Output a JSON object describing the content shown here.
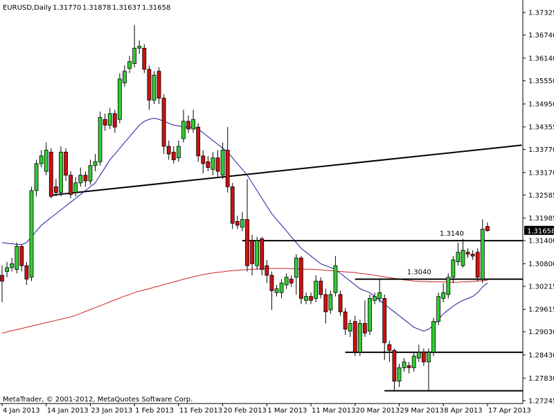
{
  "chart_data": {
    "type": "candlestick",
    "title": "EURUSD,Daily",
    "header_values": [
      "1.31770",
      "1.31878",
      "1.31637",
      "1.31658"
    ],
    "footer": "MetaTrader, © 2001-2012, MetaQuotes Software Corp.",
    "up_color": "#33cc33",
    "down_color": "#cc1111",
    "categories": [
      "4 Jan 2013",
      null,
      null,
      null,
      null,
      null,
      null,
      null,
      null,
      "14 Jan 2013",
      null,
      null,
      null,
      null,
      null,
      null,
      null,
      null,
      "23 Jan 2013",
      null,
      null,
      null,
      null,
      null,
      null,
      null,
      null,
      "1 Feb 2013",
      null,
      null,
      null,
      null,
      null,
      null,
      null,
      null,
      "11 Feb 2013",
      null,
      null,
      null,
      null,
      null,
      null,
      null,
      null,
      "20 Feb 2013",
      null,
      null,
      null,
      null,
      null,
      null,
      null,
      null,
      "1 Mar 2013",
      null,
      null,
      null,
      null,
      null,
      null,
      null,
      null,
      "11 Mar 2013",
      null,
      null,
      null,
      null,
      null,
      null,
      null,
      null,
      "20 Mar 2013",
      null,
      null,
      null,
      null,
      null,
      null,
      null,
      null,
      "29 Mar 2013",
      null,
      null,
      null,
      null,
      null,
      null,
      null,
      null,
      "8 Apr 2013",
      null,
      null,
      null,
      null,
      null,
      null,
      null,
      null,
      "17 Apr 2013"
    ],
    "open": [
      1.305,
      1.306,
      1.307,
      1.3065,
      1.3125,
      1.3075,
      1.3045,
      1.327,
      1.334,
      1.332,
      1.337,
      1.328,
      1.3265,
      1.337,
      1.331,
      1.3265,
      1.329,
      1.331,
      1.3295,
      1.3335,
      1.3345,
      1.3455,
      1.344,
      1.347,
      1.3455,
      1.355,
      1.3587,
      1.36,
      1.364,
      1.364,
      1.3585,
      1.3505,
      1.358,
      1.351,
      1.3385,
      1.337,
      1.3355,
      1.3405,
      1.345,
      1.343,
      1.3435,
      1.336,
      1.3345,
      1.3325,
      1.3355,
      1.331,
      1.3375,
      1.328,
      1.319,
      1.3175,
      1.3195,
      1.314,
      1.3075,
      1.3145,
      1.3075,
      1.305,
      1.3005,
      1.3005,
      1.3025,
      1.304,
      1.3045,
      1.3095,
      1.2985,
      1.2995,
      1.299,
      1.3035,
      1.3,
      1.296,
      1.3005,
      1.3,
      1.2955,
      1.2905,
      1.293,
      1.285,
      1.2925,
      1.2905,
      1.2985,
      1.299,
      1.299,
      1.287,
      1.2855,
      1.2775,
      1.281,
      1.2815,
      1.281,
      1.2835,
      1.285,
      1.2825,
      1.285,
      1.293,
      1.299,
      1.3,
      1.3045,
      1.3085,
      1.3075,
      1.311,
      1.3105,
      1.311,
      1.304,
      1.3177
    ],
    "high": [
      1.3075,
      1.3085,
      1.3095,
      1.3135,
      1.313,
      1.3085,
      1.328,
      1.335,
      1.3375,
      1.3395,
      1.338,
      1.33,
      1.3385,
      1.338,
      1.332,
      1.3305,
      1.333,
      1.332,
      1.335,
      1.3365,
      1.3475,
      1.347,
      1.3485,
      1.348,
      1.3575,
      1.3595,
      1.362,
      1.37,
      1.366,
      1.365,
      1.3595,
      1.358,
      1.359,
      1.352,
      1.34,
      1.3385,
      1.34,
      1.348,
      1.3465,
      1.348,
      1.3445,
      1.3375,
      1.336,
      1.337,
      1.3375,
      1.3395,
      1.3435,
      1.329,
      1.3205,
      1.3215,
      1.33,
      1.3155,
      1.315,
      1.315,
      1.309,
      1.306,
      1.3025,
      1.304,
      1.3055,
      1.305,
      1.3105,
      1.31,
      1.3005,
      1.3005,
      1.305,
      1.3045,
      1.3015,
      1.301,
      1.31,
      1.301,
      1.2965,
      1.2935,
      1.2945,
      1.2935,
      1.2985,
      1.3,
      1.3005,
      1.304,
      1.3,
      1.288,
      1.286,
      1.282,
      1.2835,
      1.2825,
      1.285,
      1.287,
      1.286,
      1.286,
      1.294,
      1.3005,
      1.303,
      1.3055,
      1.31,
      1.3135,
      1.3145,
      1.312,
      1.3115,
      1.312,
      1.3195,
      1.31878
    ],
    "low": [
      1.298,
      1.3045,
      1.306,
      1.3055,
      1.306,
      1.3025,
      1.3035,
      1.3255,
      1.333,
      1.331,
      1.325,
      1.3255,
      1.3255,
      1.3295,
      1.325,
      1.3255,
      1.328,
      1.328,
      1.3285,
      1.332,
      1.3335,
      1.3425,
      1.343,
      1.342,
      1.3445,
      1.354,
      1.3575,
      1.359,
      1.3625,
      1.3575,
      1.348,
      1.3495,
      1.3495,
      1.3365,
      1.335,
      1.334,
      1.3345,
      1.3395,
      1.342,
      1.342,
      1.3345,
      1.3315,
      1.332,
      1.331,
      1.3305,
      1.33,
      1.3265,
      1.317,
      1.317,
      1.3165,
      1.306,
      1.305,
      1.3065,
      1.305,
      1.303,
      1.296,
      1.2995,
      1.299,
      1.3015,
      1.302,
      1.3,
      1.2975,
      1.2975,
      1.2975,
      1.298,
      1.299,
      1.2925,
      1.295,
      1.2995,
      1.2945,
      1.2895,
      1.289,
      1.284,
      1.284,
      1.289,
      1.2895,
      1.2975,
      1.298,
      1.283,
      1.2825,
      1.275,
      1.276,
      1.28,
      1.2795,
      1.28,
      1.2825,
      1.2815,
      1.275,
      1.284,
      1.292,
      1.298,
      1.299,
      1.303,
      1.3075,
      1.307,
      1.3095,
      1.309,
      1.3035,
      1.303,
      1.31637
    ],
    "close": [
      1.3035,
      1.307,
      1.308,
      1.3125,
      1.3075,
      1.304,
      1.327,
      1.334,
      1.336,
      1.3375,
      1.3255,
      1.3265,
      1.337,
      1.331,
      1.326,
      1.329,
      1.331,
      1.3295,
      1.3335,
      1.3345,
      1.346,
      1.344,
      1.347,
      1.3435,
      1.356,
      1.358,
      1.3605,
      1.364,
      1.3645,
      1.3585,
      1.3505,
      1.357,
      1.351,
      1.3385,
      1.3365,
      1.335,
      1.3385,
      1.345,
      1.343,
      1.3455,
      1.336,
      1.334,
      1.333,
      1.3355,
      1.332,
      1.3375,
      1.328,
      1.3185,
      1.318,
      1.3195,
      1.3075,
      1.308,
      1.314,
      1.3065,
      1.305,
      1.301,
      1.3015,
      1.303,
      1.3045,
      1.303,
      1.3095,
      1.299,
      1.2995,
      1.2985,
      1.3035,
      1.3,
      1.2955,
      1.3,
      1.3075,
      1.2955,
      1.291,
      1.2925,
      1.285,
      1.2925,
      1.29,
      1.299,
      1.2995,
      1.3005,
      1.2875,
      1.2855,
      1.2775,
      1.281,
      1.2825,
      1.281,
      1.284,
      1.285,
      1.2825,
      1.285,
      1.293,
      1.2995,
      1.3005,
      1.3045,
      1.309,
      1.311,
      1.3115,
      1.3105,
      1.31,
      1.3045,
      1.317,
      1.31658
    ],
    "overlays": [
      {
        "color": "#1a1a9e",
        "values": [
          1.3135,
          1.3133,
          1.3132,
          1.313,
          1.313,
          1.3135,
          1.315,
          1.3165,
          1.318,
          1.319,
          1.32,
          1.321,
          1.322,
          1.323,
          1.324,
          1.325,
          1.326,
          1.327,
          1.328,
          1.329,
          1.331,
          1.333,
          1.335,
          1.3365,
          1.338,
          1.3395,
          1.341,
          1.3425,
          1.344,
          1.345,
          1.3455,
          1.3458,
          1.3455,
          1.345,
          1.3445,
          1.344,
          1.3438,
          1.3435,
          1.3435,
          1.3435,
          1.343,
          1.342,
          1.341,
          1.34,
          1.339,
          1.338,
          1.337,
          1.3355,
          1.334,
          1.3325,
          1.331,
          1.329,
          1.327,
          1.325,
          1.323,
          1.321,
          1.3195,
          1.318,
          1.3165,
          1.315,
          1.3135,
          1.312,
          1.311,
          1.31,
          1.309,
          1.308,
          1.3075,
          1.307,
          1.3065,
          1.3055,
          1.3045,
          1.3035,
          1.3025,
          1.3015,
          1.301,
          1.3005,
          1.2995,
          1.2985,
          1.2975,
          1.2965,
          1.2955,
          1.2945,
          1.2935,
          1.2925,
          1.2915,
          1.291,
          1.2905,
          1.291,
          1.292,
          1.2935,
          1.295,
          1.296,
          1.297,
          1.2978,
          1.2985,
          1.299,
          1.2995,
          1.3005,
          1.302,
          1.303
        ]
      },
      {
        "color": "#cc2222",
        "values": [
          1.29,
          1.2903,
          1.2906,
          1.2909,
          1.2912,
          1.2915,
          1.2918,
          1.2921,
          1.2924,
          1.2927,
          1.293,
          1.2933,
          1.2936,
          1.2939,
          1.2942,
          1.2946,
          1.2951,
          1.2956,
          1.2961,
          1.2966,
          1.2971,
          1.2976,
          1.2981,
          1.2986,
          1.2991,
          1.2996,
          1.3,
          1.3005,
          1.3009,
          1.3012,
          1.3015,
          1.3019,
          1.3022,
          1.3026,
          1.3029,
          1.3033,
          1.3036,
          1.304,
          1.3043,
          1.3046,
          1.3049,
          1.3052,
          1.3054,
          1.3056,
          1.3058,
          1.3059,
          1.3061,
          1.3062,
          1.3063,
          1.3064,
          1.3065,
          1.3066,
          1.3066,
          1.3067,
          1.3067,
          1.3068,
          1.3068,
          1.3068,
          1.3068,
          1.3067,
          1.3067,
          1.3067,
          1.3066,
          1.3066,
          1.3065,
          1.3064,
          1.3063,
          1.3062,
          1.3061,
          1.306,
          1.3059,
          1.3058,
          1.3057,
          1.3055,
          1.3054,
          1.3052,
          1.305,
          1.3048,
          1.3046,
          1.3044,
          1.3042,
          1.304,
          1.3038,
          1.3037,
          1.3035,
          1.3034,
          1.3034,
          1.3033,
          1.3033,
          1.3033,
          1.3033,
          1.3032,
          1.3032,
          1.3032,
          1.3033,
          1.3033,
          1.3034,
          1.3035,
          1.3036,
          1.3037
        ]
      }
    ],
    "levels": [
      {
        "value": 1.314,
        "label": "1.3140",
        "from": 49
      },
      {
        "value": 1.304,
        "label": "1.3040",
        "from": 72
      },
      {
        "value": 1.285,
        "from": 70
      },
      {
        "value": 1.275,
        "from": 78
      }
    ],
    "trendline": {
      "from": [
        10,
        1.3258
      ],
      "to": [
        106,
        1.3388
      ]
    },
    "current_price": {
      "value": 1.31658,
      "label": "1.31658"
    },
    "ylim": [
      1.2717,
      1.3765
    ],
    "yticks": [
      1.37325,
      {
        "value": 1.3674,
        "label": "1.36740"
      },
      {
        "value": 1.3614,
        "label": "1.36140"
      },
      {
        "value": 1.3555,
        "label": "1.35550"
      },
      {
        "value": 1.3495,
        "label": "1.34950"
      },
      1.34355,
      {
        "value": 1.3377,
        "label": "1.33770"
      },
      {
        "value": 1.3317,
        "label": "1.33170"
      },
      1.32585,
      1.31985,
      {
        "value": 1.314,
        "label": "1.31400"
      },
      {
        "value": 1.308,
        "label": "1.30800"
      },
      1.30215,
      1.29615,
      {
        "value": 1.2903,
        "label": "1.29030"
      },
      {
        "value": 1.2843,
        "label": "1.28430"
      },
      {
        "value": 1.2783,
        "label": "1.27830"
      },
      1.27245
    ]
  }
}
